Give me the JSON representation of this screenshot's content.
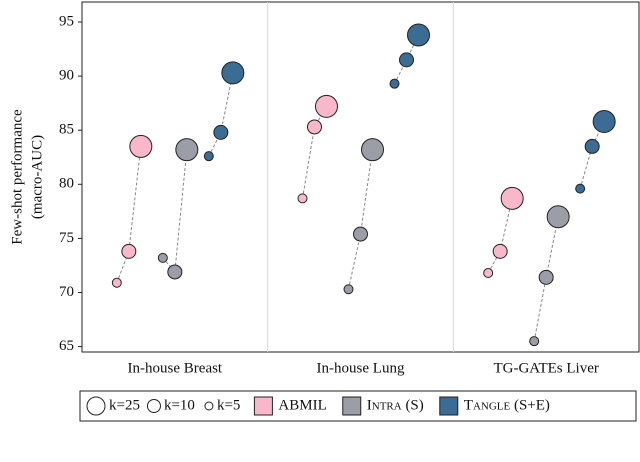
{
  "chart_data": {
    "type": "scatter",
    "y_label": [
      "Few-shot performance",
      "(macro-AUC)"
    ],
    "categories": [
      "In-house Breast",
      "In-house Lung",
      "TG-GATEs Liver"
    ],
    "k_labels": [
      "k=5",
      "k=10",
      "k=25"
    ],
    "series": [
      {
        "name": "ABMIL",
        "color": "#f8b8ca",
        "values": [
          [
            70.9,
            73.8,
            83.5
          ],
          [
            78.7,
            85.3,
            87.2
          ],
          [
            71.8,
            73.8,
            78.7
          ]
        ]
      },
      {
        "name": "Intra (S)",
        "color": "#9b9ea6",
        "values": [
          [
            73.2,
            71.9,
            83.2
          ],
          [
            70.3,
            75.4,
            83.2
          ],
          [
            65.5,
            71.4,
            77.0
          ]
        ]
      },
      {
        "name": "Tangle (S+E)",
        "color": "#3b6d94",
        "values": [
          [
            82.6,
            84.8,
            90.3
          ],
          [
            89.3,
            91.5,
            93.8
          ],
          [
            79.6,
            83.5,
            85.8
          ]
        ]
      }
    ],
    "ylim": [
      64.5,
      96.85
    ],
    "yticks": [
      65,
      70,
      75,
      80,
      85,
      90,
      95
    ]
  }
}
